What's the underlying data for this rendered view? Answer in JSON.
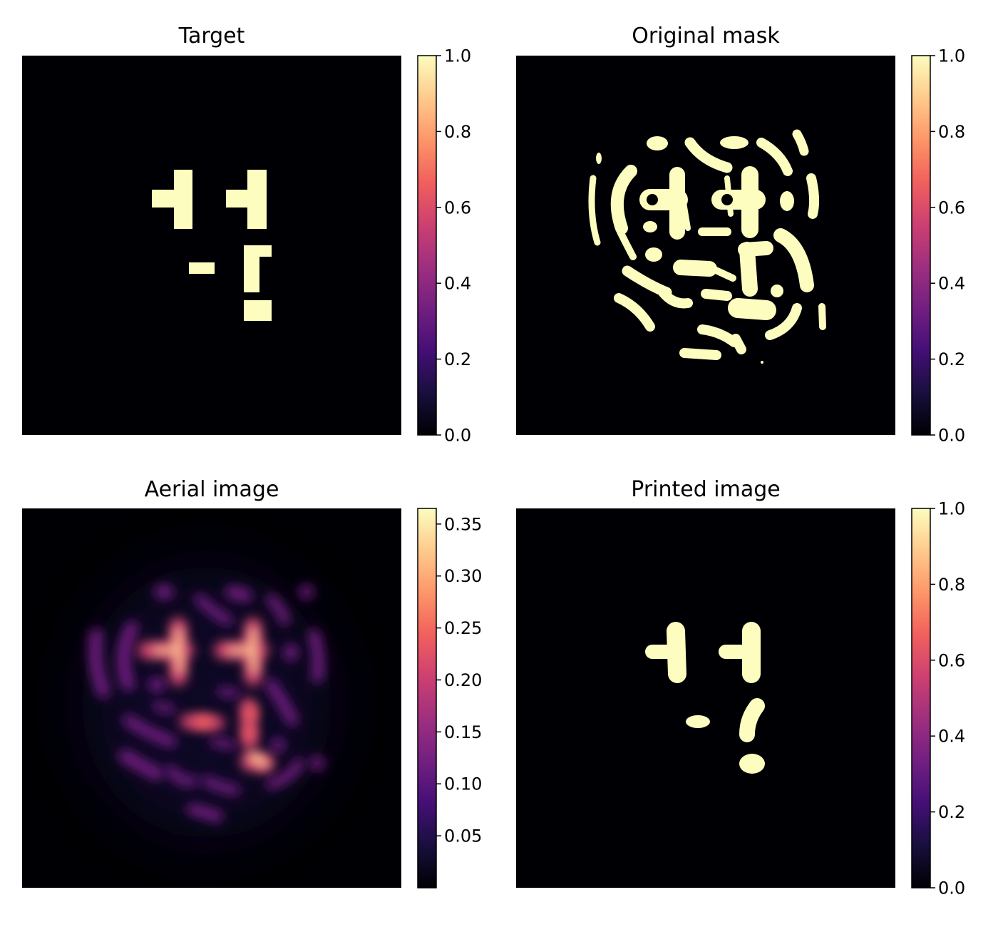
{
  "chart_data": [
    {
      "type": "heatmap",
      "title": "Target",
      "colormap": "magma",
      "colorbar": {
        "min": 0.0,
        "max": 1.0,
        "ticks": [
          "0.0",
          "0.2",
          "0.4",
          "0.6",
          "0.8",
          "1.0"
        ]
      },
      "content": "binary target pattern: two ⊣-shaped features top, a short dash and a bracket-shaped feature below, and a small rectangle at the bottom"
    },
    {
      "type": "heatmap",
      "title": "Original mask",
      "colormap": "magma",
      "colorbar": {
        "min": 0.0,
        "max": 1.0,
        "ticks": [
          "0.0",
          "0.2",
          "0.4",
          "0.6",
          "0.8",
          "1.0"
        ]
      },
      "content": "binary mask of many curved, worm-like blobs clustered around the center"
    },
    {
      "type": "heatmap",
      "title": "Aerial image",
      "colormap": "magma",
      "colorbar": {
        "min": 0.0,
        "max": 0.365,
        "ticks": [
          "0.05",
          "0.10",
          "0.15",
          "0.20",
          "0.25",
          "0.30",
          "0.35"
        ]
      },
      "content": "blurred intensity map; brightest (~0.35) on the two ⊣ features and the lower bracket / rectangle"
    },
    {
      "type": "heatmap",
      "title": "Printed image",
      "colormap": "magma",
      "colorbar": {
        "min": 0.0,
        "max": 1.0,
        "ticks": [
          "0.0",
          "0.2",
          "0.4",
          "0.6",
          "0.8",
          "1.0"
        ]
      },
      "content": "binary printed result with rounded versions of the target features"
    }
  ],
  "colors": {
    "background": "#000004",
    "feature": "#fcfdbf",
    "magma_stops": [
      "#000004",
      "#180f3d",
      "#440f76",
      "#721f81",
      "#9e2f7f",
      "#cd4071",
      "#f1605d",
      "#fd9668",
      "#feca8d",
      "#fcfdbf"
    ]
  }
}
